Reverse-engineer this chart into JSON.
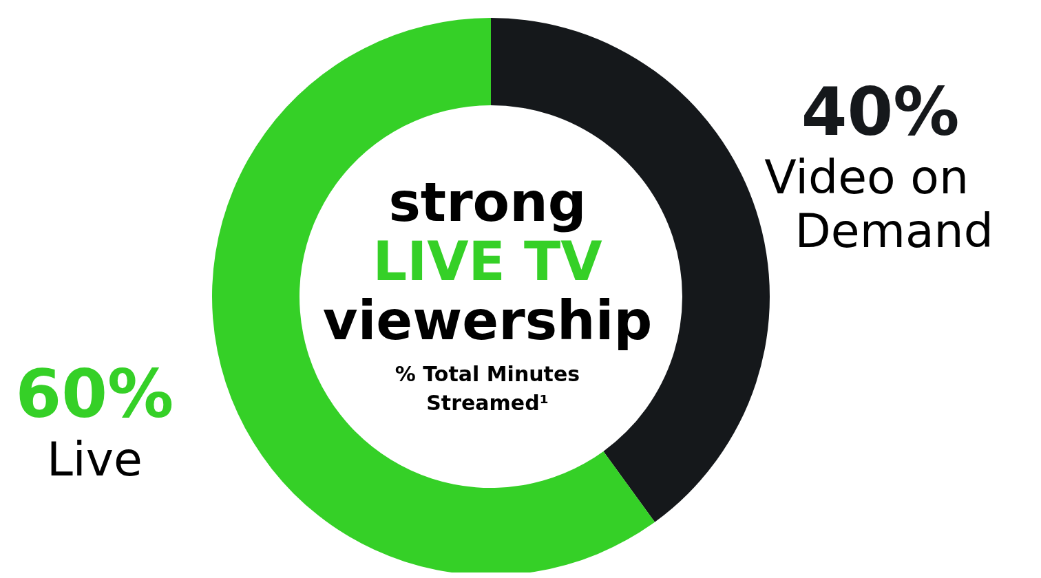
{
  "chart_data": {
    "type": "donut",
    "categories": [
      "Video on Demand",
      "Live"
    ],
    "values": [
      40,
      60
    ],
    "colors": [
      "#15181b",
      "#35d027"
    ],
    "value_labels": [
      "40%",
      "60%"
    ],
    "annotations": [
      "strong",
      "LIVE TV",
      "viewership",
      "% Total Minutes Streamed¹"
    ]
  }
}
